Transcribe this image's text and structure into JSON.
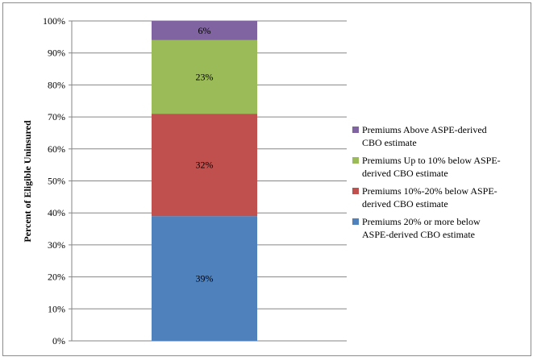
{
  "chart_data": {
    "type": "bar",
    "stacked": true,
    "orientation": "vertical",
    "categories": [
      ""
    ],
    "ylabel": "Percent of Eligible Uninsured",
    "ylim": [
      0,
      100
    ],
    "yticks": [
      "0%",
      "10%",
      "20%",
      "30%",
      "40%",
      "50%",
      "60%",
      "70%",
      "80%",
      "90%",
      "100%"
    ],
    "grid": true,
    "legend_position": "right",
    "series": [
      {
        "name": "Premiums 20% or more below ASPE-derived CBO estimate",
        "values": [
          39
        ],
        "label": "39%",
        "color": "#4f81bd"
      },
      {
        "name": "Premiums 10%-20% below ASPE-derived CBO estimate",
        "values": [
          32
        ],
        "label": "32%",
        "color": "#c0504d"
      },
      {
        "name": "Premiums Up to 10% below ASPE-derived CBO estimate",
        "values": [
          23
        ],
        "label": "23%",
        "color": "#9bbb59"
      },
      {
        "name": "Premiums Above ASPE-derived CBO estimate",
        "values": [
          6
        ],
        "label": "6%",
        "color": "#8064a2"
      }
    ]
  },
  "legend": {
    "items": [
      {
        "line1": "Premiums Above ASPE-derived",
        "line2": "CBO estimate",
        "color": "#8064a2"
      },
      {
        "line1": "Premiums Up to 10% below ASPE-",
        "line2": "derived CBO estimate",
        "color": "#9bbb59"
      },
      {
        "line1": "Premiums 10%-20% below ASPE-",
        "line2": "derived CBO estimate",
        "color": "#c0504d"
      },
      {
        "line1": "Premiums 20% or more below",
        "line2": "ASPE-derived CBO estimate",
        "color": "#4f81bd"
      }
    ]
  }
}
